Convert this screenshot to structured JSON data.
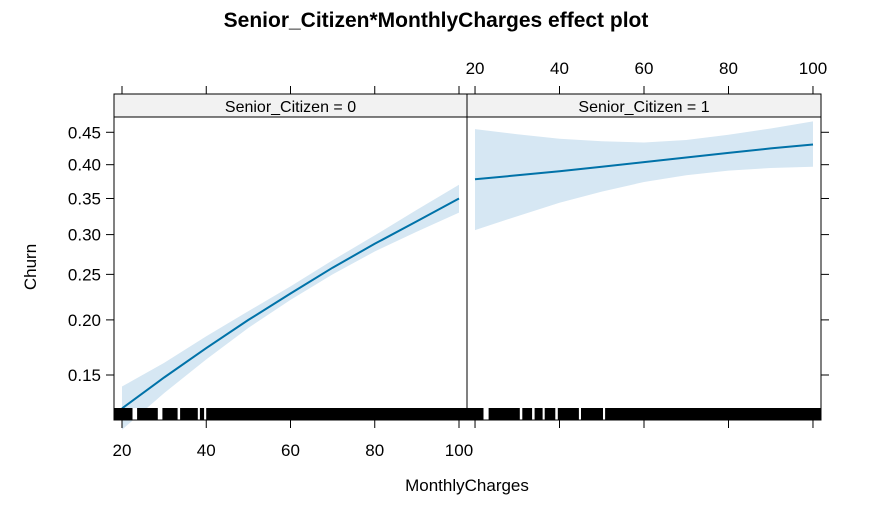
{
  "chart_data": {
    "type": "line",
    "title": "Senior_Citizen*MonthlyCharges effect plot",
    "xlabel": "MonthlyCharges",
    "ylabel": "Churn",
    "x_ticks": [
      20,
      40,
      60,
      80,
      100
    ],
    "x_tick_labels": [
      "20",
      "40",
      "60",
      "80",
      "100"
    ],
    "y_ticks": [
      0.15,
      0.2,
      0.25,
      0.3,
      0.35,
      0.4,
      0.45
    ],
    "y_tick_labels": [
      "0.15",
      "0.20",
      "0.25",
      "0.30",
      "0.35",
      "0.40",
      "0.45"
    ],
    "xlim": [
      18.1,
      101.9
    ],
    "ylim": [
      0.126,
      0.474
    ],
    "y_scale": "logit",
    "grid": false,
    "legend": "none",
    "colors": {
      "line": "#0072a8",
      "band": "#d6e7f3",
      "strip": "#f2f2f2",
      "rug": "#000000"
    },
    "panels": [
      {
        "strip": "Senior_Citizen = 0",
        "series": {
          "x": [
            20,
            30,
            40,
            50,
            60,
            70,
            80,
            90,
            100
          ],
          "y": [
            0.125,
            0.148,
            0.173,
            0.2,
            0.228,
            0.258,
            0.288,
            0.318,
            0.35
          ],
          "lower": [
            0.111,
            0.136,
            0.163,
            0.192,
            0.221,
            0.25,
            0.278,
            0.304,
            0.33
          ],
          "upper": [
            0.141,
            0.16,
            0.184,
            0.209,
            0.236,
            0.267,
            0.299,
            0.334,
            0.37
          ]
        }
      },
      {
        "strip": "Senior_Citizen = 1",
        "series": {
          "x": [
            20,
            30,
            40,
            50,
            60,
            70,
            80,
            90,
            100
          ],
          "y": [
            0.378,
            0.384,
            0.39,
            0.397,
            0.404,
            0.411,
            0.418,
            0.425,
            0.431
          ],
          "lower": [
            0.306,
            0.325,
            0.344,
            0.36,
            0.374,
            0.384,
            0.391,
            0.395,
            0.397
          ],
          "upper": [
            0.455,
            0.447,
            0.44,
            0.436,
            0.434,
            0.438,
            0.446,
            0.456,
            0.467
          ]
        }
      }
    ]
  }
}
